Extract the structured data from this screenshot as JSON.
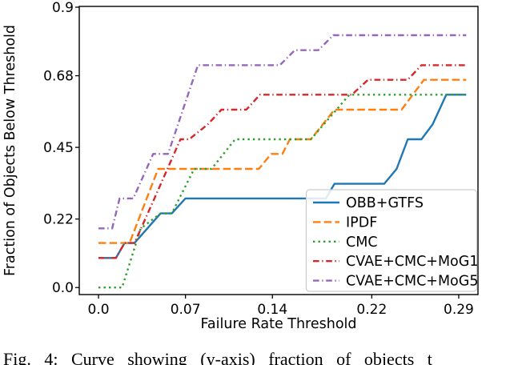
{
  "figure": {
    "caption": "Fig. 4: Curve showing (y-axis) fraction of objects t",
    "background_color": "#ffffff",
    "text_color": "#000000",
    "spine_color": "#000000",
    "legend_border_color": "#cccccc"
  },
  "chart_data": {
    "type": "line",
    "title": "",
    "xlabel": "Failure Rate Threshold",
    "ylabel": "Fraction of Objects Below Threshold",
    "x_ticks": [
      0.0,
      0.07,
      0.14,
      0.22,
      0.29
    ],
    "x_tick_labels": [
      "0.0",
      "0.07",
      "0.14",
      "0.22",
      "0.29"
    ],
    "y_ticks": [
      0.0,
      0.22,
      0.45,
      0.68,
      0.9
    ],
    "y_tick_labels": [
      "0.0",
      "0.22",
      "0.45",
      "0.68",
      "0.9"
    ],
    "xlim": [
      -0.0155,
      0.3055
    ],
    "ylim": [
      -0.0225,
      0.9025
    ],
    "grid": false,
    "legend_position": "lower right",
    "series": [
      {
        "name": "OBB+GTFS",
        "color": "#1f77b4",
        "style": "solid",
        "points": [
          [
            0,
            0.095
          ],
          [
            0.014,
            0.095
          ],
          [
            0.021,
            0.143
          ],
          [
            0.029,
            0.143
          ],
          [
            0.05,
            0.238
          ],
          [
            0.059,
            0.238
          ],
          [
            0.07,
            0.286
          ],
          [
            0.183,
            0.286
          ],
          [
            0.19,
            0.333
          ],
          [
            0.23,
            0.333
          ],
          [
            0.24,
            0.381
          ],
          [
            0.249,
            0.476
          ],
          [
            0.26,
            0.476
          ],
          [
            0.269,
            0.524
          ],
          [
            0.28,
            0.619
          ],
          [
            0.296,
            0.619
          ]
        ]
      },
      {
        "name": "IPDF",
        "color": "#ff7f0e",
        "style": "dashed",
        "points": [
          [
            0,
            0.143
          ],
          [
            0.025,
            0.143
          ],
          [
            0.048,
            0.381
          ],
          [
            0.129,
            0.381
          ],
          [
            0.139,
            0.429
          ],
          [
            0.148,
            0.429
          ],
          [
            0.154,
            0.476
          ],
          [
            0.171,
            0.476
          ],
          [
            0.19,
            0.571
          ],
          [
            0.244,
            0.571
          ],
          [
            0.253,
            0.619
          ],
          [
            0.262,
            0.667
          ],
          [
            0.296,
            0.667
          ]
        ]
      },
      {
        "name": "CMC",
        "color": "#2ca02c",
        "style": "dotted",
        "points": [
          [
            0,
            0.0
          ],
          [
            0.019,
            0.0
          ],
          [
            0.034,
            0.19
          ],
          [
            0.05,
            0.238
          ],
          [
            0.059,
            0.238
          ],
          [
            0.077,
            0.381
          ],
          [
            0.091,
            0.381
          ],
          [
            0.11,
            0.476
          ],
          [
            0.171,
            0.476
          ],
          [
            0.202,
            0.619
          ],
          [
            0.296,
            0.619
          ]
        ]
      },
      {
        "name": "CVAE+CMC+MoG1",
        "color": "#d62728",
        "style": "dashdot",
        "points": [
          [
            0,
            0.095
          ],
          [
            0.014,
            0.095
          ],
          [
            0.021,
            0.143
          ],
          [
            0.029,
            0.143
          ],
          [
            0.045,
            0.286
          ],
          [
            0.066,
            0.476
          ],
          [
            0.073,
            0.476
          ],
          [
            0.088,
            0.524
          ],
          [
            0.099,
            0.571
          ],
          [
            0.119,
            0.571
          ],
          [
            0.13,
            0.619
          ],
          [
            0.204,
            0.619
          ],
          [
            0.217,
            0.667
          ],
          [
            0.249,
            0.667
          ],
          [
            0.26,
            0.714
          ],
          [
            0.296,
            0.714
          ]
        ]
      },
      {
        "name": "CVAE+CMC+MoG5",
        "color": "#9467bd",
        "style": "dashdot",
        "points": [
          [
            0,
            0.19
          ],
          [
            0.011,
            0.19
          ],
          [
            0.017,
            0.286
          ],
          [
            0.028,
            0.286
          ],
          [
            0.044,
            0.429
          ],
          [
            0.056,
            0.429
          ],
          [
            0.08,
            0.714
          ],
          [
            0.146,
            0.714
          ],
          [
            0.158,
            0.762
          ],
          [
            0.177,
            0.762
          ],
          [
            0.189,
            0.81
          ],
          [
            0.296,
            0.81
          ]
        ]
      }
    ]
  }
}
